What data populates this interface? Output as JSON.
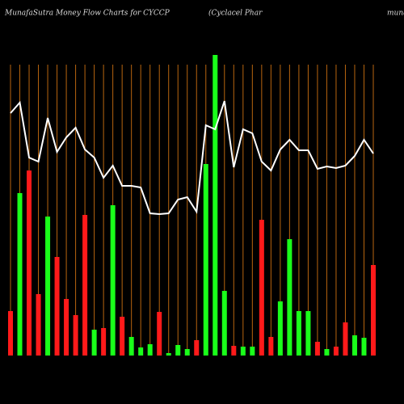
{
  "chart_data": {
    "type": "bar",
    "title": "MunafaSutra  Money Flow  Charts for CYCCP",
    "subtitle": "(Cyclacel Phar",
    "source": "muna",
    "series": [
      {
        "name": "flow",
        "colors": [
          "#ff1a1a",
          "#1aff1a",
          "#ff1a1a",
          "#ff1a1a",
          "#1aff1a",
          "#ff1a1a",
          "#ff1a1a",
          "#ff1a1a",
          "#ff1a1a",
          "#1aff1a",
          "#ff1a1a",
          "#1aff1a",
          "#ff1a1a",
          "#1aff1a",
          "#1aff1a",
          "#1aff1a",
          "#ff1a1a",
          "#1aff1a",
          "#1aff1a",
          "#1aff1a",
          "#ff1a1a",
          "#1aff1a",
          "#1aff1a",
          "#1aff1a",
          "#ff1a1a",
          "#1aff1a",
          "#1aff1a",
          "#ff1a1a",
          "#ff1a1a",
          "#1aff1a",
          "#1aff1a",
          "#1aff1a",
          "#1aff1a",
          "#ff1a1a",
          "#1aff1a",
          "#ff1a1a",
          "#ff1a1a",
          "#1aff1a",
          "#1aff1a",
          "#ff1a1a"
        ],
        "values": [
          55,
          201,
          229,
          76,
          172,
          122,
          70,
          50,
          174,
          32,
          34,
          186,
          48,
          23,
          10,
          14,
          54,
          3,
          13,
          8,
          19,
          237,
          372,
          80,
          12,
          11,
          11,
          168,
          23,
          67,
          144,
          55,
          55,
          17,
          8,
          11,
          41,
          25,
          22,
          112
        ]
      },
      {
        "name": "price",
        "color": "#ffffff",
        "values": [
          300,
          313,
          245,
          240,
          294,
          252,
          270,
          282,
          255,
          245,
          220,
          235,
          210,
          210,
          208,
          176,
          175,
          176,
          193,
          196,
          178,
          285,
          280,
          315,
          233,
          280,
          275,
          240,
          229,
          255,
          267,
          254,
          254,
          231,
          234,
          232,
          235,
          247,
          267,
          250
        ]
      }
    ],
    "grid_color": "#b8650f"
  }
}
